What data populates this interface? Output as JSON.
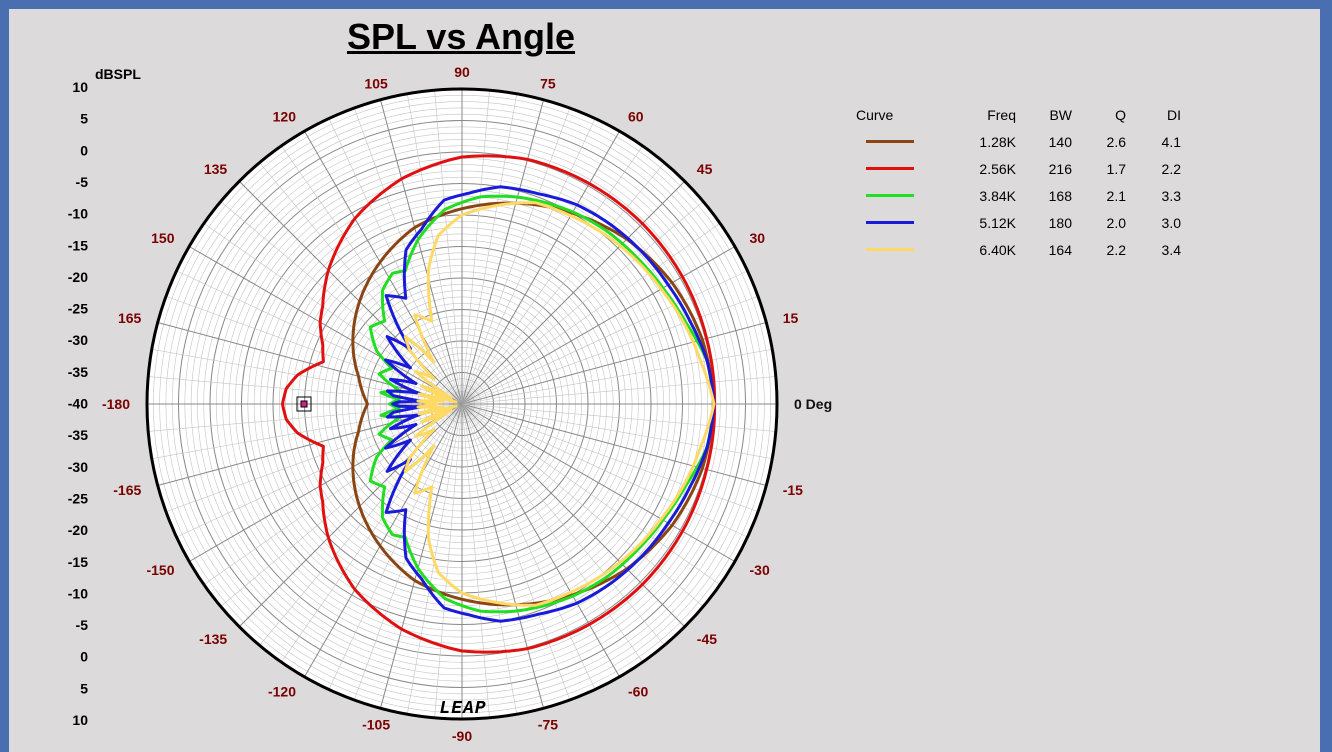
{
  "chart_data": {
    "type": "polar",
    "title": "SPL vs Angle",
    "radial_unit_label": "dBSPL",
    "radial_ticks": [
      "10",
      "5",
      "0",
      "-5",
      "-10",
      "-15",
      "-20",
      "-25",
      "-30",
      "-35",
      "-40",
      "-35",
      "-30",
      "-25",
      "-20",
      "-15",
      "-10",
      "-5",
      "0",
      "5",
      "10"
    ],
    "rlim": [
      -40,
      10
    ],
    "angle_ticks": [
      {
        "deg": 0,
        "label": "0 Deg"
      },
      {
        "deg": 15,
        "label": "15"
      },
      {
        "deg": 30,
        "label": "30"
      },
      {
        "deg": 45,
        "label": "45"
      },
      {
        "deg": 60,
        "label": "60"
      },
      {
        "deg": 75,
        "label": "75"
      },
      {
        "deg": 90,
        "label": "90"
      },
      {
        "deg": 105,
        "label": "105"
      },
      {
        "deg": 120,
        "label": "120"
      },
      {
        "deg": 135,
        "label": "135"
      },
      {
        "deg": 150,
        "label": "150"
      },
      {
        "deg": 165,
        "label": "165"
      },
      {
        "deg": 180,
        "label": "-180"
      },
      {
        "deg": -15,
        "label": "-15"
      },
      {
        "deg": -30,
        "label": "-30"
      },
      {
        "deg": -45,
        "label": "-45"
      },
      {
        "deg": -60,
        "label": "-60"
      },
      {
        "deg": -75,
        "label": "-75"
      },
      {
        "deg": -90,
        "label": "-90"
      },
      {
        "deg": -105,
        "label": "-105"
      },
      {
        "deg": -120,
        "label": "-120"
      },
      {
        "deg": -135,
        "label": "-135"
      },
      {
        "deg": -150,
        "label": "-150"
      },
      {
        "deg": -165,
        "label": "-165"
      }
    ],
    "grid": true,
    "legend_placement": "right",
    "legend_headers": {
      "curve": "Curve",
      "freq": "Freq",
      "bw": "BW",
      "q": "Q",
      "di": "DI"
    },
    "series": [
      {
        "freq": "1.28K",
        "bw": "140",
        "q": "2.6",
        "di": "4.1",
        "color": "#8b4513",
        "points": [
          [
            0,
            -0.1
          ],
          [
            15,
            -0.5
          ],
          [
            30,
            -1.5
          ],
          [
            45,
            -3
          ],
          [
            60,
            -5
          ],
          [
            75,
            -7
          ],
          [
            90,
            -9
          ],
          [
            105,
            -11
          ],
          [
            120,
            -14
          ],
          [
            135,
            -17
          ],
          [
            150,
            -20
          ],
          [
            165,
            -23
          ],
          [
            180,
            -25
          ]
        ]
      },
      {
        "freq": "2.56K",
        "bw": "216",
        "q": "1.7",
        "di": "2.2",
        "color": "#e01010",
        "points": [
          [
            0,
            0.1
          ],
          [
            15,
            0.2
          ],
          [
            30,
            0.4
          ],
          [
            45,
            0.5
          ],
          [
            60,
            0.4
          ],
          [
            75,
            0.2
          ],
          [
            90,
            -0.8
          ],
          [
            105,
            -3
          ],
          [
            120,
            -6
          ],
          [
            135,
            -10
          ],
          [
            145,
            -13
          ],
          [
            150,
            -14
          ],
          [
            157,
            -16
          ],
          [
            163,
            -17
          ],
          [
            170,
            -13.5
          ],
          [
            175,
            -12
          ],
          [
            180,
            -11.5
          ]
        ]
      },
      {
        "freq": "3.84K",
        "bw": "168",
        "q": "2.1",
        "di": "3.3",
        "color": "#22dd22",
        "points": [
          [
            0,
            -0.1
          ],
          [
            10,
            -0.5
          ],
          [
            20,
            -2.2
          ],
          [
            30,
            -3.2
          ],
          [
            40,
            -3.8
          ],
          [
            50,
            -4.2
          ],
          [
            60,
            -4.8
          ],
          [
            75,
            -6
          ],
          [
            85,
            -7
          ],
          [
            95,
            -9
          ],
          [
            105,
            -13
          ],
          [
            113,
            -17
          ],
          [
            118,
            -16.5
          ],
          [
            125,
            -18
          ],
          [
            133,
            -22
          ],
          [
            140,
            -21
          ],
          [
            148,
            -24
          ],
          [
            153,
            -27.5
          ],
          [
            160,
            -26
          ],
          [
            168,
            -30
          ],
          [
            172,
            -27
          ],
          [
            176,
            -30
          ],
          [
            180,
            -28.5
          ]
        ]
      },
      {
        "freq": "5.12K",
        "bw": "180",
        "q": "2.0",
        "di": "3.0",
        "color": "#1a1ad9",
        "points": [
          [
            0,
            0
          ],
          [
            10,
            -0.5
          ],
          [
            20,
            -1.5
          ],
          [
            30,
            -2.2
          ],
          [
            40,
            -2.6
          ],
          [
            50,
            -3
          ],
          [
            60,
            -3.5
          ],
          [
            70,
            -4.5
          ],
          [
            80,
            -5
          ],
          [
            88,
            -6.5
          ],
          [
            95,
            -7.5
          ],
          [
            103,
            -11.5
          ],
          [
            110,
            -14
          ],
          [
            118,
            -21
          ],
          [
            125,
            -19
          ],
          [
            133,
            -28
          ],
          [
            138,
            -24
          ],
          [
            145,
            -30
          ],
          [
            150,
            -26
          ],
          [
            156,
            -32
          ],
          [
            161,
            -28
          ],
          [
            166,
            -33
          ],
          [
            170,
            -28
          ],
          [
            173,
            -29
          ],
          [
            176,
            -34
          ],
          [
            178,
            -30
          ],
          [
            180,
            -29
          ]
        ]
      },
      {
        "freq": "6.40K",
        "bw": "164",
        "q": "2.2",
        "di": "3.4",
        "color": "#ffd966",
        "points": [
          [
            0,
            0
          ],
          [
            10,
            -1.5
          ],
          [
            20,
            -2.5
          ],
          [
            30,
            -3.5
          ],
          [
            45,
            -4.5
          ],
          [
            60,
            -5.5
          ],
          [
            70,
            -6
          ],
          [
            80,
            -8
          ],
          [
            90,
            -10
          ],
          [
            98,
            -13
          ],
          [
            104,
            -18
          ],
          [
            110,
            -26
          ],
          [
            118,
            -24
          ],
          [
            124,
            -32
          ],
          [
            130,
            -26
          ],
          [
            134,
            -28
          ],
          [
            138,
            -34
          ],
          [
            145,
            -31
          ],
          [
            150,
            -38
          ],
          [
            156,
            -33
          ],
          [
            162,
            -39
          ],
          [
            167,
            -33
          ],
          [
            172,
            -37
          ],
          [
            176,
            -33
          ],
          [
            180,
            -36
          ]
        ]
      }
    ]
  },
  "watermark": "LEAP"
}
